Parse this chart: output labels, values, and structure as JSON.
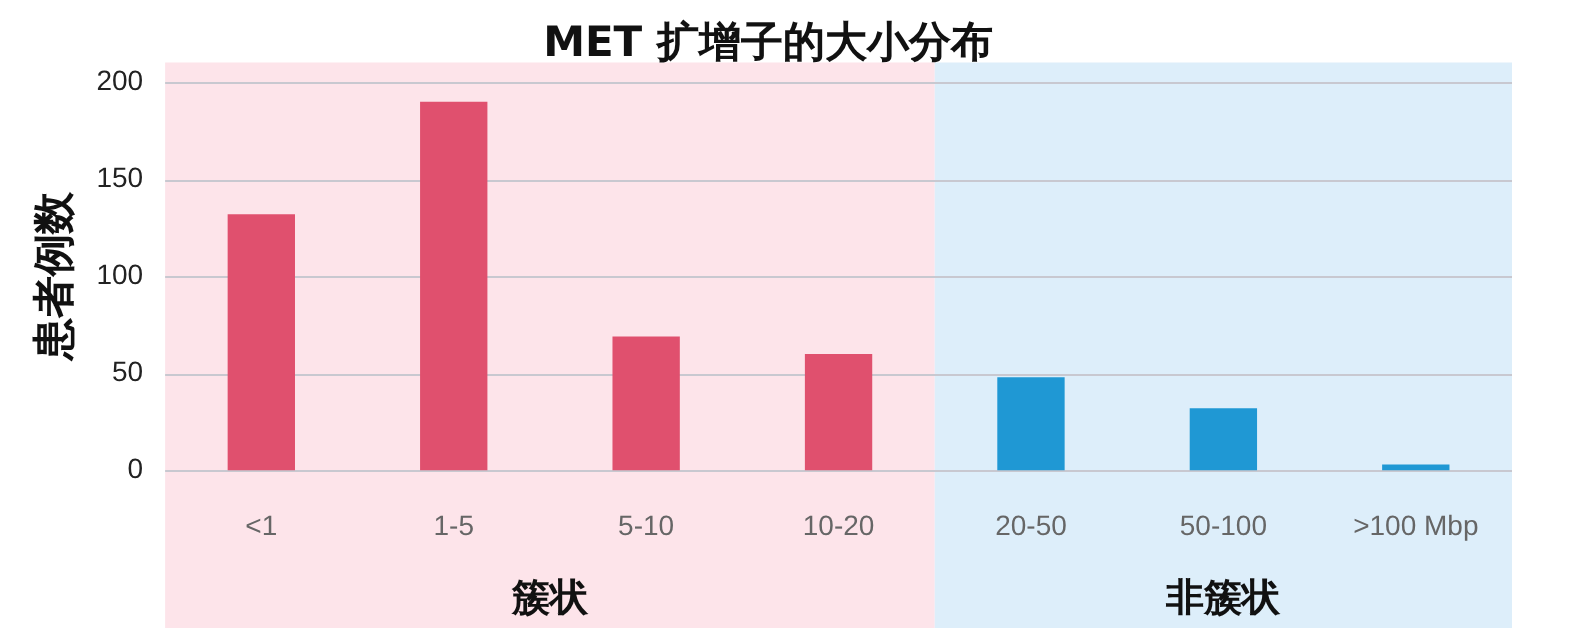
{
  "chart_data": {
    "type": "bar",
    "title": "MET 扩增子的大小分布",
    "ylabel": "患者例数",
    "categories": [
      "<1",
      "1-5",
      "5-10",
      "10-20",
      "20-50",
      "50-100",
      ">100 Mbp"
    ],
    "values": [
      132,
      190,
      69,
      60,
      48,
      32,
      3
    ],
    "colors": [
      "#e0506e",
      "#e0506e",
      "#e0506e",
      "#e0506e",
      "#1f98d4",
      "#1f98d4",
      "#1f98d4"
    ],
    "ylim": [
      0,
      200
    ],
    "yticks": [
      0,
      50,
      100,
      150,
      200
    ],
    "grid": "y",
    "legend": false,
    "bands": [
      {
        "axis": "x",
        "from": "<1",
        "to": "10-20",
        "label": "簇状",
        "color": "#fde4ea"
      },
      {
        "axis": "x",
        "from": "20-50",
        "to": ">100 Mbp",
        "label": "非簇状",
        "color": "#ddeefa"
      }
    ]
  }
}
